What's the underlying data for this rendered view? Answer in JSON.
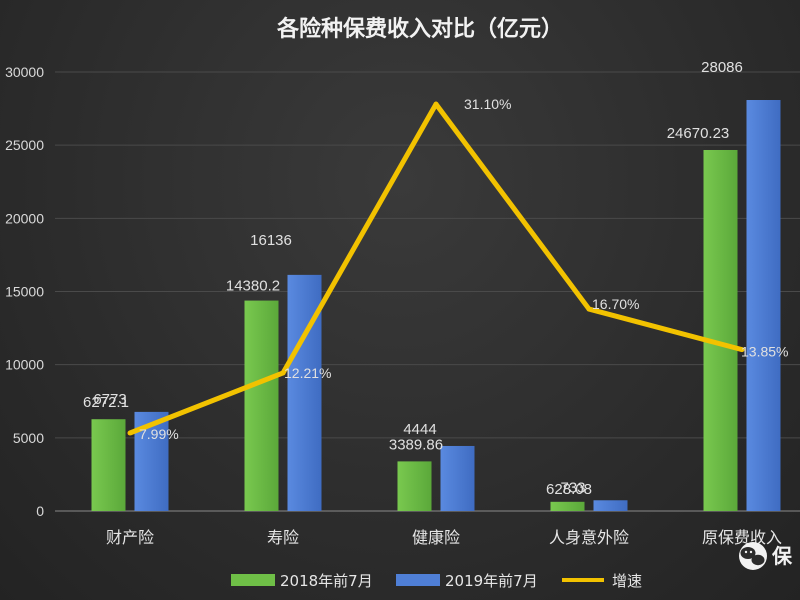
{
  "chart_data": {
    "type": "bar",
    "title": "各险种保费收入对比（亿元）",
    "categories": [
      "财产险",
      "寿险",
      "健康险",
      "人身意外险",
      "原保费收入"
    ],
    "ylim": [
      0,
      30000
    ],
    "yticks": [
      0,
      5000,
      10000,
      15000,
      20000,
      25000,
      30000
    ],
    "ytick_labels": [
      "0",
      "5000",
      "10000",
      "15000",
      "20000",
      "25000",
      "30000"
    ],
    "series": [
      {
        "name": "2018年前7月",
        "values": [
          6272.1,
          14380.2,
          3389.86,
          628.08,
          24670.23
        ],
        "labels": [
          "6272.1",
          "14380.2",
          "3389.86",
          "628.08",
          "24670.23"
        ],
        "color": "#6fbf47"
      },
      {
        "name": "2019年前7月",
        "values": [
          6773,
          16136,
          4444,
          733,
          28086
        ],
        "labels": [
          "6773",
          "16136",
          "4444",
          "733",
          "28086"
        ],
        "color": "#4f7fd6"
      }
    ],
    "line_series": {
      "name": "增速",
      "values": [
        7.99,
        12.21,
        31.1,
        16.7,
        13.85
      ],
      "labels": [
        "7.99%",
        "12.21%",
        "31.10%",
        "16.70%",
        "13.85%"
      ],
      "color": "#f2c200"
    },
    "grid": true,
    "legend": "bottom"
  },
  "watermark": {
    "text": "保"
  }
}
